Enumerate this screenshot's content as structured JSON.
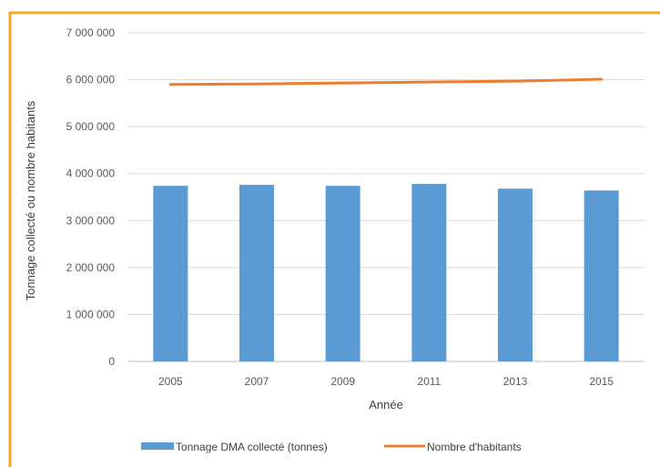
{
  "chart_data": {
    "type": "bar",
    "categories": [
      "2005",
      "2007",
      "2009",
      "2011",
      "2013",
      "2015"
    ],
    "series": [
      {
        "name": "Tonnage DMA collecté (tonnes)",
        "type": "bar",
        "color": "#5b9bd5",
        "values": [
          3740000,
          3760000,
          3740000,
          3780000,
          3680000,
          3640000
        ]
      },
      {
        "name": "Nombre d'habitants",
        "type": "line",
        "color": "#ed7d31",
        "values": [
          5900000,
          5910000,
          5930000,
          5950000,
          5970000,
          6010000
        ]
      }
    ],
    "title": "",
    "xlabel": "Année",
    "ylabel": "Tonnage collecté ou nombre habitants",
    "ylim": [
      0,
      7000000
    ],
    "yticks": [
      0,
      1000000,
      2000000,
      3000000,
      4000000,
      5000000,
      6000000,
      7000000
    ],
    "ytick_labels": [
      "0",
      "1 000 000",
      "2 000 000",
      "3 000 000",
      "4 000 000",
      "5 000 000",
      "6 000 000",
      "7 000 000"
    ],
    "grid": true,
    "legend_position": "bottom",
    "frame_color": "#f2a825",
    "grid_color": "#d9d9d9",
    "axis_color": "#bfbfbf"
  }
}
